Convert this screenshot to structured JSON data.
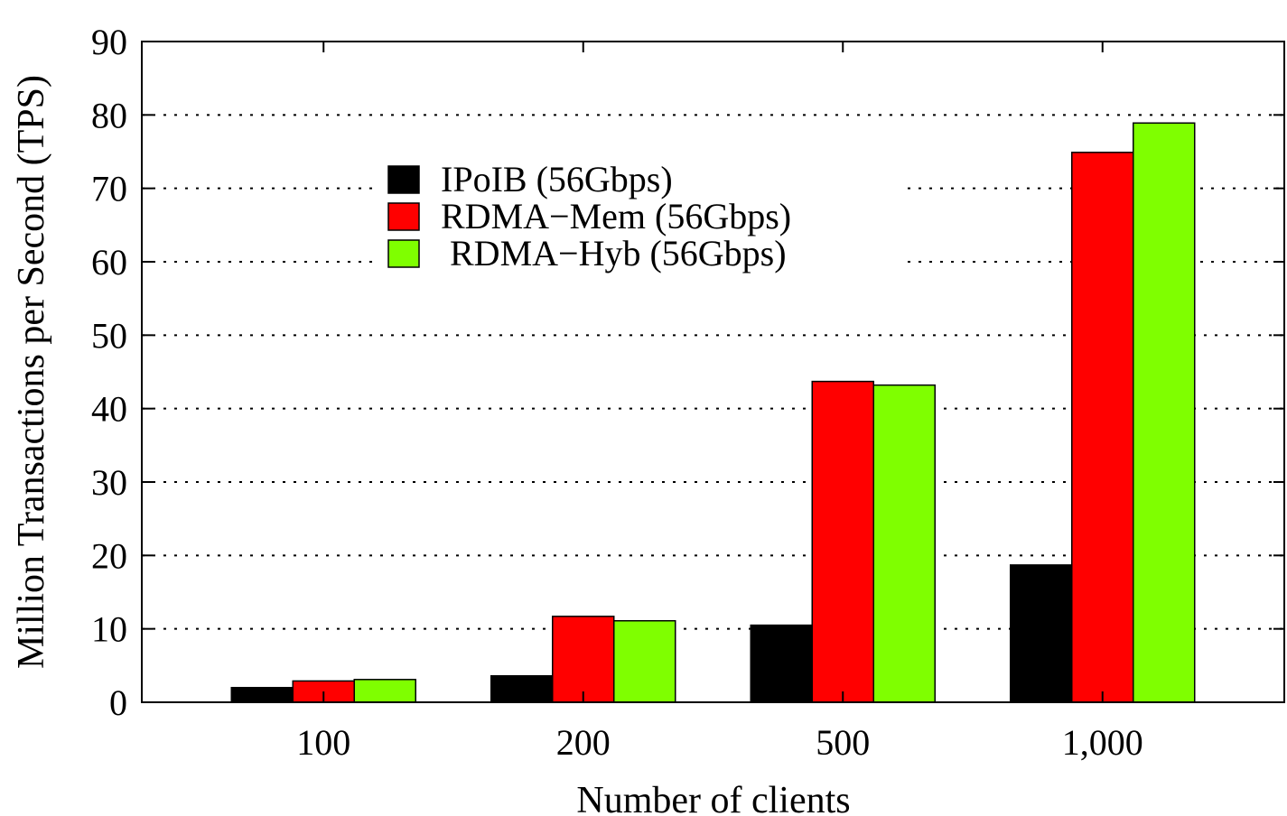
{
  "chart_data": {
    "type": "bar",
    "xlabel": "Number of clients",
    "ylabel": "Million Transactions per Second (TPS)",
    "ylim": [
      0,
      90
    ],
    "yticks": [
      "0",
      "10",
      "20",
      "30",
      "40",
      "50",
      "60",
      "70",
      "80",
      "90"
    ],
    "categories": [
      "100",
      "200",
      "500",
      "1,000"
    ],
    "series": [
      {
        "name": "IPoIB (56Gbps)",
        "color": "#000000",
        "values": [
          2.0,
          3.6,
          10.5,
          18.7
        ]
      },
      {
        "name": "RDMA−Mem (56Gbps)",
        "color": "#ff0000",
        "values": [
          2.9,
          11.7,
          43.7,
          74.9
        ]
      },
      {
        "name": " RDMA−Hyb (56Gbps)",
        "color": "#7fff00",
        "values": [
          3.1,
          11.1,
          43.2,
          78.9
        ]
      }
    ],
    "grid": "horizontal-dotted",
    "legend_position": "top-left-inside"
  }
}
